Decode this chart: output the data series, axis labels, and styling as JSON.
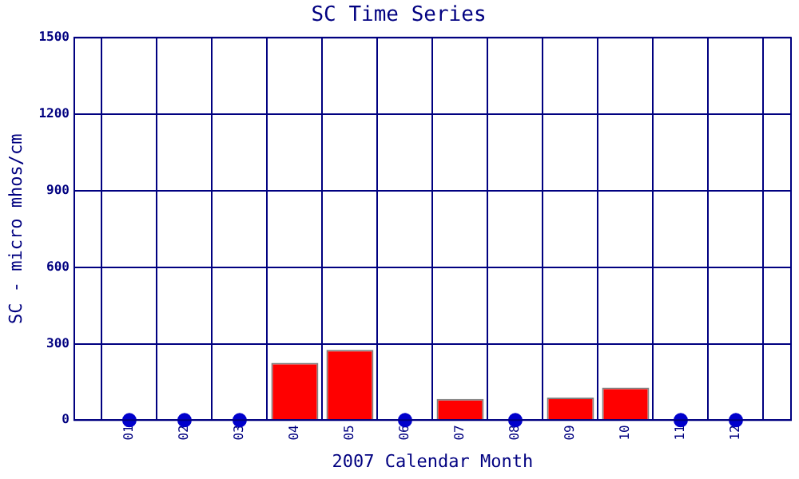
{
  "chart_data": {
    "type": "bar",
    "title": "SC Time Series",
    "xlabel": "2007 Calendar Month",
    "ylabel": "SC - micro mhos/cm",
    "categories": [
      "01",
      "02",
      "03",
      "04",
      "05",
      "06",
      "07",
      "08",
      "09",
      "10",
      "11",
      "12"
    ],
    "series": [
      {
        "color": "#ff0000",
        "values": [
          null,
          null,
          null,
          225,
          276,
          null,
          83,
          null,
          89,
          128,
          null,
          null
        ]
      },
      {
        "type": "scatter",
        "color": "#0000cc",
        "marker": "circle",
        "values": [
          0,
          0,
          0,
          null,
          null,
          0,
          null,
          0,
          null,
          null,
          0,
          0
        ]
      }
    ],
    "ylim": [
      0,
      1500
    ],
    "yticks": [
      0,
      300,
      600,
      900,
      1200,
      1500
    ],
    "grid": true,
    "legend": false
  }
}
